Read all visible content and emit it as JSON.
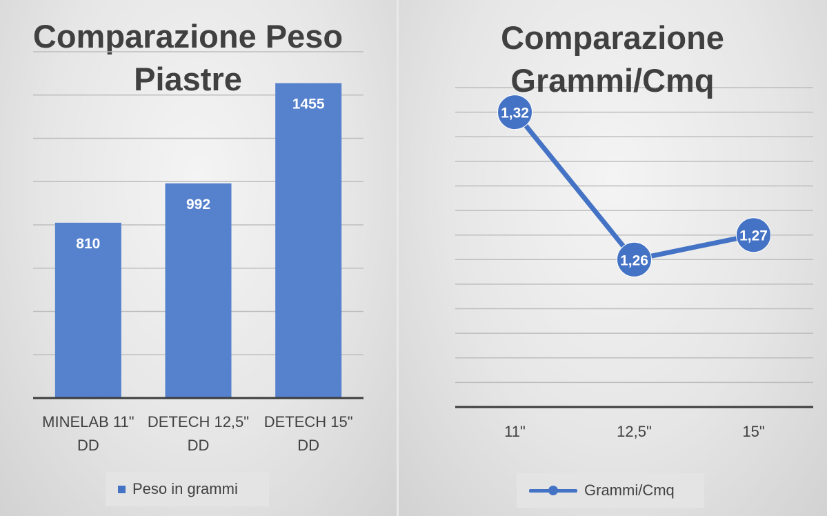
{
  "chart_data": [
    {
      "type": "bar",
      "title": "Comparazione Peso Piastre",
      "categories": [
        [
          "MINELAB 11\"",
          "DD"
        ],
        [
          "DETECH 12,5\"",
          "DD"
        ],
        [
          "DETECH 15\"",
          "DD"
        ]
      ],
      "series": [
        {
          "name": "Peso in grammi",
          "values": [
            810,
            992,
            1455
          ],
          "labels": [
            "810",
            "992",
            "1455"
          ]
        }
      ],
      "xlabel": "",
      "ylabel": "",
      "ylim": [
        0,
        1600
      ],
      "grid": true,
      "legend": "bottom",
      "color": "#4472c4"
    },
    {
      "type": "line",
      "title": "Comparazione Grammi/Cmq",
      "categories": [
        "11\"",
        "12,5\"",
        "15\""
      ],
      "series": [
        {
          "name": "Grammi/Cmq",
          "values": [
            1.32,
            1.26,
            1.27
          ],
          "labels": [
            "1,32",
            "1,26",
            "1,27"
          ]
        }
      ],
      "xlabel": "",
      "ylabel": "",
      "ylim": [
        1.2,
        1.33
      ],
      "grid": true,
      "legend": "bottom",
      "color": "#4472c4"
    }
  ]
}
